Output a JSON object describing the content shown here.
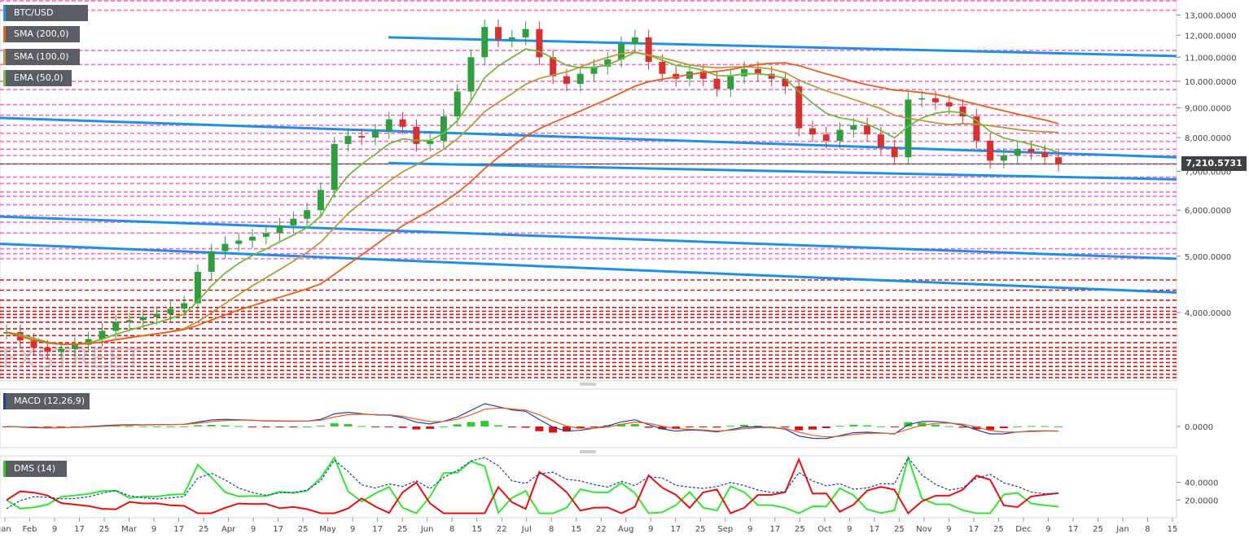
{
  "chart_data": {
    "type": "candlestick",
    "symbol": "BTC/USD",
    "indicator_labels": {
      "symbol": "BTC/USD",
      "sma200": "SMA (200,0)",
      "sma100": "SMA (100,0)",
      "ema50": "EMA (50,0)",
      "macd": "MACD (12,26,9)",
      "dms": "DMS (14)"
    },
    "colors": {
      "sma200": "#e8601c",
      "sma100": "#b89a3a",
      "ema50": "#6cbd3a",
      "trend": "#1e90e8",
      "level_pink": "#ff66cc",
      "level_red": "#e01010",
      "up": "#2e9e3e",
      "down": "#d83030",
      "macd_line": "#1f3fa8",
      "signal_line": "#e8601c",
      "hist_up": "#2ecc2e",
      "hist_down": "#e01010",
      "dmi_plus": "#32e632",
      "dmi_minus": "#e81010",
      "adx": "#1f3fa8"
    },
    "price_axis": {
      "ticks": [
        "13,000.0000",
        "12,000.0000",
        "11,000.0000",
        "10,000.0000",
        "9,000.0000",
        "8,000.0000",
        "7,000.0000",
        "6,000.0000",
        "5,000.0000",
        "4,000.0000"
      ],
      "tick_values": [
        13000,
        12000,
        11000,
        10000,
        9000,
        8000,
        7000,
        6000,
        5000,
        4000
      ],
      "scale": "log",
      "ylim": [
        3050,
        13800
      ]
    },
    "current_price": "7,210.5731",
    "macd_axis": {
      "ticks": [
        "0.0000"
      ]
    },
    "dms_axis": {
      "ticks": [
        "40.0000",
        "20.0000"
      ],
      "tick_values": [
        40,
        20
      ]
    },
    "x_axis": {
      "ticks": [
        "Jan",
        "Feb",
        "9",
        "17",
        "25",
        "Mar",
        "9",
        "17",
        "25",
        "Apr",
        "9",
        "17",
        "25",
        "May",
        "9",
        "17",
        "25",
        "Jun",
        "8",
        "15",
        "22",
        "Jul",
        "8",
        "15",
        "22",
        "Aug",
        "9",
        "17",
        "25",
        "Sep",
        "9",
        "17",
        "25",
        "Oct",
        "9",
        "17",
        "25",
        "Nov",
        "9",
        "17",
        "25",
        "Dec",
        "9",
        "17",
        "25",
        "Jan",
        "8",
        "15"
      ]
    },
    "close_series": [
      3700,
      3580,
      3480,
      3420,
      3460,
      3520,
      3600,
      3720,
      3850,
      3880,
      3930,
      3980,
      4060,
      4150,
      4700,
      5100,
      5250,
      5320,
      5400,
      5480,
      5650,
      5800,
      6000,
      6500,
      7800,
      8050,
      8000,
      8200,
      8600,
      8350,
      7800,
      7900,
      8700,
      9600,
      11000,
      12400,
      11800,
      11900,
      12300,
      11000,
      10200,
      9900,
      10300,
      10600,
      10900,
      11600,
      11900,
      10800,
      10300,
      10100,
      10400,
      10100,
      9700,
      10200,
      10500,
      10300,
      10100,
      9800,
      8300,
      8100,
      7900,
      8250,
      8400,
      8100,
      7700,
      7400,
      9300,
      9350,
      9200,
      9050,
      8700,
      7900,
      7300,
      7450,
      7650,
      7550,
      7400,
      7210
    ],
    "horizontal_levels_pink": [
      13750,
      13250,
      11300,
      10680,
      10000,
      9680,
      9120,
      8740,
      8400,
      8140,
      7880,
      7640,
      7450,
      7200,
      6840,
      6670,
      6450,
      6340,
      6130,
      5880,
      5720,
      5480,
      5150,
      5050,
      4950
    ],
    "horizontal_levels_red": [
      4550,
      4370,
      4200,
      4080,
      4020,
      3970,
      3920,
      3850,
      3750,
      3650,
      3550,
      3480,
      3430,
      3380,
      3330,
      3280,
      3230,
      3180,
      3130,
      3090
    ]
  }
}
